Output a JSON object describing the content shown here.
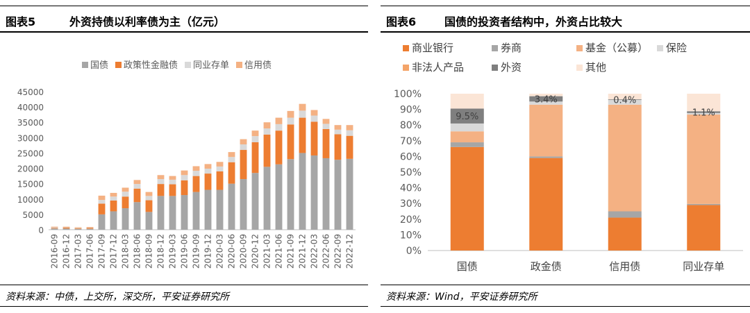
{
  "left": {
    "figure_label": "图表5",
    "figure_title": "外资持债以利率债为主（亿元）",
    "source": "资料来源：中债，上交所，深交所，平安证券研究所"
  },
  "right": {
    "figure_label": "图表6",
    "figure_title": "国债的投资者结构中，外资占比较大",
    "source": "资料来源：Wind，平安证券研究所"
  },
  "chart_data": [
    {
      "type": "bar",
      "stacked": true,
      "title": "",
      "xlabel": "",
      "ylabel": "",
      "ylim": [
        0,
        45000
      ],
      "yticks": [
        0,
        5000,
        10000,
        15000,
        20000,
        25000,
        30000,
        35000,
        40000,
        45000
      ],
      "grid": false,
      "legend_position": "top",
      "categories": [
        "2016-09",
        "2016-12",
        "2017-03",
        "2017-06",
        "2017-09",
        "2017-12",
        "2018-03",
        "2018-06",
        "2018-09",
        "2018-12",
        "2019-03",
        "2019-06",
        "2019-09",
        "2019-12",
        "2020-03",
        "2020-06",
        "2020-09",
        "2020-12",
        "2021-03",
        "2021-06",
        "2021-09",
        "2021-12",
        "2022-03",
        "2022-06",
        "2022-09",
        "2022-12"
      ],
      "label_every": 1,
      "series": [
        {
          "name": "国债",
          "color": "#a6a6a6",
          "values": [
            400,
            400,
            300,
            300,
            5000,
            6000,
            7000,
            9000,
            5800,
            11000,
            11000,
            11300,
            12300,
            13000,
            13000,
            15000,
            16500,
            18500,
            20500,
            21300,
            23000,
            25000,
            24200,
            23300,
            22800,
            23100
          ]
        },
        {
          "name": "政策性金融债",
          "color": "#ed7d31",
          "values": [
            200,
            300,
            200,
            300,
            3500,
            3500,
            3800,
            4400,
            3800,
            3900,
            3800,
            4800,
            5200,
            5300,
            6000,
            7000,
            9500,
            10000,
            10500,
            11000,
            11300,
            11500,
            11000,
            9500,
            8300,
            7500
          ]
        },
        {
          "name": "同业存单",
          "color": "#d9d9d9",
          "values": [
            200,
            100,
            100,
            100,
            1200,
            1300,
            1600,
            1500,
            1400,
            1600,
            1500,
            1700,
            1700,
            1600,
            1600,
            1700,
            1800,
            2000,
            2000,
            2100,
            2200,
            2300,
            2000,
            1700,
            1500,
            1800
          ]
        },
        {
          "name": "信用债",
          "color": "#f4b183",
          "values": [
            200,
            200,
            200,
            200,
            1400,
            1200,
            1300,
            1300,
            1300,
            1300,
            1200,
            1500,
            1500,
            1500,
            1500,
            1600,
            1700,
            1800,
            2000,
            2100,
            2200,
            2200,
            1800,
            1600,
            1500,
            1700
          ]
        }
      ]
    },
    {
      "type": "bar",
      "stacked": true,
      "title": "",
      "xlabel": "",
      "ylabel": "",
      "ylim": [
        0,
        100
      ],
      "yticks": [
        0,
        10,
        20,
        30,
        40,
        50,
        60,
        70,
        80,
        90,
        100
      ],
      "tick_suffix": "%",
      "grid": false,
      "legend_position": "top",
      "categories": [
        "国债",
        "政金债",
        "信用债",
        "同业存单"
      ],
      "series": [
        {
          "name": "商业银行",
          "color": "#ed7d31",
          "values": [
            66,
            59,
            21,
            29
          ]
        },
        {
          "name": "券商",
          "color": "#a6a6a6",
          "values": [
            3,
            1,
            4,
            0.7
          ]
        },
        {
          "name": "基金（公募）",
          "color": "#f4b183",
          "values": [
            7,
            33,
            68,
            57
          ]
        },
        {
          "name": "保险",
          "color": "#d9d9d9",
          "values": [
            5,
            2,
            3,
            1
          ]
        },
        {
          "name": "非法人产品",
          "color": "#f4a469",
          "values": [
            0,
            0,
            0,
            0
          ]
        },
        {
          "name": "外资",
          "color": "#7f7f7f",
          "values": [
            9.5,
            3.4,
            0.4,
            1.1
          ]
        },
        {
          "name": "其他",
          "color": "#fbe5d6",
          "values": [
            9.5,
            1.6,
            3.6,
            11.2
          ]
        }
      ],
      "annotations": [
        {
          "category": "国债",
          "text": "9.5%"
        },
        {
          "category": "政金债",
          "text": "3.4%"
        },
        {
          "category": "信用债",
          "text": "0.4%"
        },
        {
          "category": "同业存单",
          "text": "1.1%"
        }
      ]
    }
  ]
}
